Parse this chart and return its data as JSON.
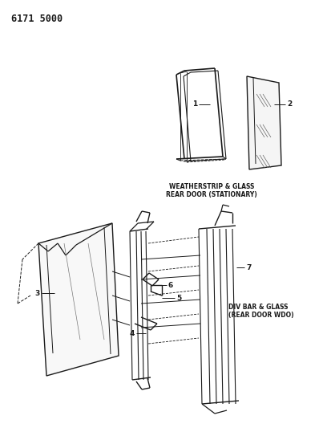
{
  "title_code": "6171 5000",
  "background_color": "#ffffff",
  "line_color": "#1a1a1a",
  "label1_text": "WEATHERSTRIP & GLASS\nREAR DOOR (STATIONARY)",
  "label2_text": "DIV BAR & GLASS\n(REAR DOOR WDO)",
  "figsize": [
    4.08,
    5.33
  ],
  "dpi": 100
}
